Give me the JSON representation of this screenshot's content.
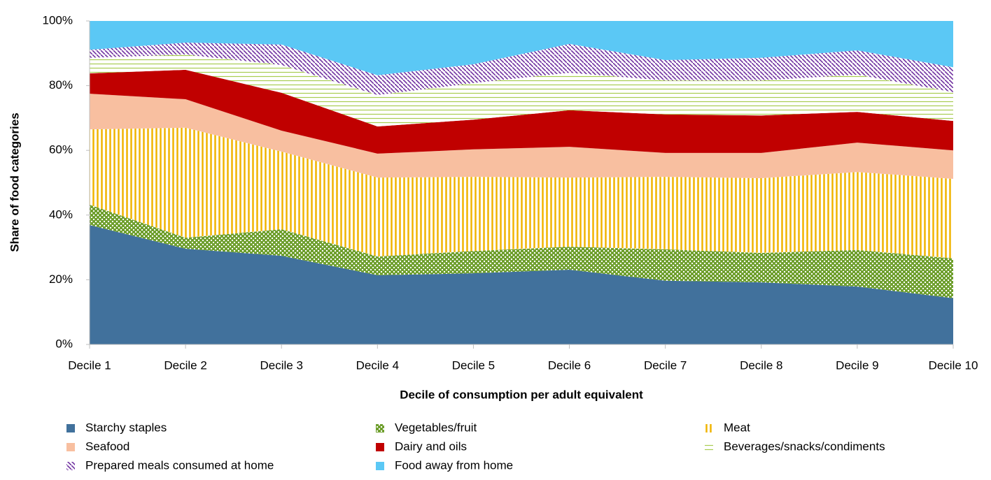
{
  "chart_data": {
    "type": "stacked_area",
    "x_label": "Decile of consumption per adult equivalent",
    "y_label": "Share of food categories",
    "categories": [
      "Decile 1",
      "Decile 2",
      "Decile 3",
      "Decile 4",
      "Decile 5",
      "Decile 6",
      "Decile 7",
      "Decile 8",
      "Decile 9",
      "Decile 10"
    ],
    "ylim": [
      0,
      100
    ],
    "yticks": [
      {
        "value": 0,
        "label": "0%"
      },
      {
        "value": 20,
        "label": "20%"
      },
      {
        "value": 40,
        "label": "40%"
      },
      {
        "value": 60,
        "label": "60%"
      },
      {
        "value": 80,
        "label": "80%"
      },
      {
        "value": 100,
        "label": "100%"
      }
    ],
    "series": [
      {
        "name": "Starchy staples",
        "color": "#41719c",
        "pattern": "solid",
        "values": [
          36.9,
          29.6,
          27.4,
          21.4,
          22.0,
          23.1,
          19.7,
          19.2,
          17.9,
          14.3
        ]
      },
      {
        "name": "Vegetables/fruit",
        "color": "#70a030",
        "pattern": "crosshatch",
        "values": [
          6.3,
          3.4,
          8.2,
          5.8,
          6.9,
          7.1,
          9.7,
          9.1,
          11.3,
          12.3
        ]
      },
      {
        "name": "Meat",
        "color": "#f0b400",
        "pattern": "vertical",
        "values": [
          23.3,
          34.0,
          24.0,
          24.4,
          22.9,
          21.4,
          22.4,
          23.1,
          24.1,
          24.6
        ]
      },
      {
        "name": "Seafood",
        "color": "#f8bfa0",
        "pattern": "solid",
        "values": [
          11.0,
          8.8,
          6.5,
          7.4,
          8.5,
          9.5,
          7.4,
          7.8,
          9.1,
          8.8
        ]
      },
      {
        "name": "Dairy and oils",
        "color": "#c00000",
        "pattern": "solid",
        "values": [
          6.3,
          9.1,
          11.7,
          8.4,
          9.2,
          11.3,
          11.9,
          11.6,
          9.5,
          9.1
        ]
      },
      {
        "name": "Beverages/snacks/condiments",
        "color": "#a8cc50",
        "pattern": "horizontal",
        "values": [
          4.8,
          4.7,
          8.6,
          9.7,
          11.3,
          11.6,
          10.5,
          10.8,
          11.5,
          8.9
        ]
      },
      {
        "name": "Prepared meals consumed at home",
        "color": "#7030a0",
        "pattern": "diagonal",
        "values": [
          2.5,
          3.7,
          6.3,
          6.1,
          5.8,
          8.9,
          6.3,
          7.0,
          7.5,
          7.7
        ]
      },
      {
        "name": "Food away from home",
        "color": "#5bc8f5",
        "pattern": "solid",
        "values": [
          8.9,
          6.7,
          7.3,
          16.8,
          13.4,
          7.1,
          12.1,
          11.4,
          9.1,
          14.3
        ]
      }
    ]
  }
}
